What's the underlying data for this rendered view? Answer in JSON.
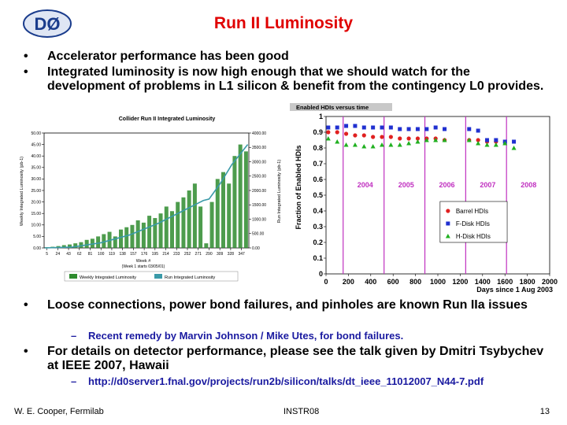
{
  "header": {
    "logo": "DØ",
    "title": "Run II Luminosity"
  },
  "bullets": [
    {
      "text": "Accelerator performance has been good"
    },
    {
      "text": "Integrated luminosity is now high enough that we should watch for the development of problems in L1 silicon & benefit from the contingency L0 provides."
    },
    {
      "text": "Loose connections, power bond failures, and pinholes are known Run IIa issues",
      "sub": "Recent remedy by Marvin Johnson / Mike Utes, for bond failures."
    },
    {
      "text": "For details on detector performance, please see the talk given by Dmitri Tsybychev at IEEE 2007, Hawaii",
      "sub": "http://d0server1.fnal.gov/projects/run2b/silicon/talks/dt_ieee_11012007_N44-7.pdf"
    }
  ],
  "footer": {
    "author": "W. E. Cooper, Fermilab",
    "venue": "INSTR08",
    "page": "13"
  },
  "chart_data": [
    {
      "type": "bar",
      "title": "Collider Run II Integrated Luminosity",
      "x_label": "Week #",
      "x_note": "(Week 1 starts 03/05/01)",
      "y_label": "Weekly Integrated Luminosity (pb-1)",
      "y2_label": "Run Integrated Luminosity (pb-1)",
      "xlim": [
        0,
        360
      ],
      "xticks": [
        5,
        24,
        43,
        62,
        81,
        100,
        119,
        138,
        157,
        176,
        195,
        214,
        233,
        252,
        271,
        290,
        309,
        328,
        347
      ],
      "ylim": [
        0,
        50
      ],
      "yticks": [
        {
          "value": 0,
          "label": "0.00"
        },
        {
          "value": 5,
          "label": "5.00"
        },
        {
          "value": 10,
          "label": "10.00"
        },
        {
          "value": 15,
          "label": "15.00"
        },
        {
          "value": 20,
          "label": "20.00"
        },
        {
          "value": 25,
          "label": "25.00"
        },
        {
          "value": 30,
          "label": "30.00"
        },
        {
          "value": 35,
          "label": "35.00"
        },
        {
          "value": 40,
          "label": "40.00"
        },
        {
          "value": 45,
          "label": "45.00"
        },
        {
          "value": 50,
          "label": "50.00"
        }
      ],
      "y2lim": [
        0,
        4000
      ],
      "y2ticks": [
        {
          "value": 0,
          "label": "0.00"
        },
        {
          "value": 500,
          "label": "500.00"
        },
        {
          "value": 1000,
          "label": "1000.00"
        },
        {
          "value": 1500,
          "label": "1500.00"
        },
        {
          "value": 2000,
          "label": "2000.00"
        },
        {
          "value": 2500,
          "label": "2500.00"
        },
        {
          "value": 3000,
          "label": "3000.00"
        },
        {
          "value": 3500,
          "label": "3500.00"
        },
        {
          "value": 4000,
          "label": "4000.00"
        }
      ],
      "legend": "bottom",
      "series": [
        {
          "name": "Weekly Integrated Luminosity",
          "color": "#2e8b2e",
          "type": "bar",
          "x": [
            5,
            15,
            25,
            35,
            45,
            55,
            65,
            75,
            85,
            95,
            105,
            115,
            125,
            135,
            145,
            155,
            165,
            175,
            185,
            195,
            205,
            215,
            225,
            235,
            245,
            255,
            265,
            275,
            285,
            295,
            305,
            315,
            325,
            335,
            345,
            355
          ],
          "values": [
            0.3,
            0.5,
            0.8,
            1.2,
            1.5,
            2,
            2.5,
            3.5,
            4,
            5,
            6,
            7,
            5,
            8,
            9,
            10,
            12,
            11,
            14,
            13,
            15,
            18,
            16,
            20,
            22,
            25,
            28,
            18,
            2,
            20,
            30,
            33,
            28,
            40,
            45,
            42
          ]
        },
        {
          "name": "Run Integrated Luminosity",
          "color": "#3a9aa8",
          "type": "line",
          "axis": "y2",
          "x": [
            1,
            50,
            100,
            150,
            200,
            250,
            280,
            290,
            310,
            330,
            350,
            358
          ],
          "values": [
            0,
            30,
            180,
            450,
            850,
            1350,
            1650,
            1700,
            2250,
            2900,
            3400,
            3600
          ]
        }
      ]
    },
    {
      "type": "scatter",
      "title": "Enabled HDIs versus time",
      "x_label": "Days since 1 Aug 2003",
      "y_label": "Fraction of Enabled HDIs",
      "xlim": [
        0,
        2000
      ],
      "xticks": [
        0,
        200,
        400,
        600,
        800,
        1000,
        1200,
        1400,
        1600,
        1800,
        2000
      ],
      "ylim": [
        0,
        1
      ],
      "yticks": [
        0,
        0.1,
        0.2,
        0.3,
        0.4,
        0.5,
        0.6,
        0.7,
        0.8,
        0.9,
        1
      ],
      "year_lines": [
        {
          "label": "2004",
          "x": 153
        },
        {
          "label": "2005",
          "x": 519
        },
        {
          "label": "2006",
          "x": 884
        },
        {
          "label": "2007",
          "x": 1249
        },
        {
          "label": "2008",
          "x": 1614
        }
      ],
      "legend": "lower right",
      "series": [
        {
          "name": "Barrel HDIs",
          "color": "#e02020",
          "marker": "circle",
          "x": [
            20,
            100,
            180,
            260,
            340,
            420,
            500,
            580,
            660,
            740,
            820,
            900,
            980,
            1060,
            1280,
            1360,
            1440,
            1520
          ],
          "values": [
            0.9,
            0.9,
            0.89,
            0.88,
            0.88,
            0.87,
            0.87,
            0.87,
            0.86,
            0.86,
            0.86,
            0.86,
            0.86,
            0.85,
            0.85,
            0.85,
            0.84,
            0.84
          ]
        },
        {
          "name": "F-Disk HDIs",
          "color": "#2030d0",
          "marker": "square",
          "x": [
            20,
            100,
            180,
            260,
            340,
            420,
            500,
            580,
            660,
            740,
            820,
            900,
            980,
            1060,
            1280,
            1360,
            1440,
            1520,
            1600,
            1680
          ],
          "values": [
            0.93,
            0.93,
            0.94,
            0.94,
            0.93,
            0.93,
            0.93,
            0.93,
            0.92,
            0.92,
            0.92,
            0.92,
            0.93,
            0.92,
            0.92,
            0.91,
            0.85,
            0.85,
            0.84,
            0.84
          ]
        },
        {
          "name": "H-Disk HDIs",
          "color": "#20b020",
          "marker": "triangle",
          "x": [
            20,
            100,
            180,
            260,
            340,
            420,
            500,
            580,
            660,
            740,
            820,
            900,
            980,
            1060,
            1280,
            1360,
            1440,
            1520,
            1600,
            1680
          ],
          "values": [
            0.86,
            0.84,
            0.82,
            0.82,
            0.81,
            0.81,
            0.82,
            0.82,
            0.82,
            0.83,
            0.84,
            0.85,
            0.85,
            0.85,
            0.85,
            0.83,
            0.82,
            0.82,
            0.83,
            0.8
          ]
        }
      ]
    }
  ]
}
